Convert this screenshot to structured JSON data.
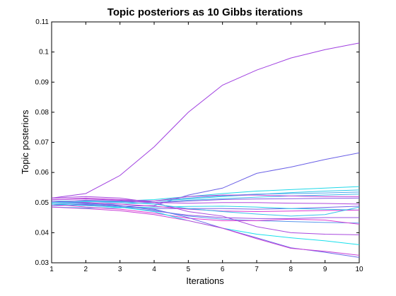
{
  "chart_data": {
    "type": "line",
    "title": "Topic posteriors as 10 Gibbs iterations",
    "xlabel": "Iterations",
    "ylabel": "Topic posteriors",
    "xlim": [
      1,
      10
    ],
    "ylim": [
      0.03,
      0.11
    ],
    "grid": false,
    "x": [
      1,
      2,
      3,
      4,
      5,
      6,
      7,
      8,
      9,
      10
    ],
    "x_ticks": [
      "1",
      "2",
      "3",
      "4",
      "5",
      "6",
      "7",
      "8",
      "9",
      "10"
    ],
    "y_ticks": [
      0.03,
      0.04,
      0.05,
      0.06,
      0.07,
      0.08,
      0.09,
      0.1,
      0.11
    ],
    "y_tick_labels": [
      "0.03",
      "0.04",
      "0.05",
      "0.06",
      "0.07",
      "0.08",
      "0.09",
      "0.1",
      "0.11"
    ],
    "series": [
      {
        "color": "#a040e0",
        "values": [
          0.0515,
          0.053,
          0.059,
          0.0685,
          0.08,
          0.089,
          0.094,
          0.098,
          0.1008,
          0.103
        ]
      },
      {
        "color": "#6a60e6",
        "values": [
          0.049,
          0.0495,
          0.0488,
          0.049,
          0.0525,
          0.0548,
          0.0597,
          0.0618,
          0.0643,
          0.0665
        ]
      },
      {
        "color": "#20d8e8",
        "values": [
          0.05,
          0.0502,
          0.0505,
          0.051,
          0.052,
          0.053,
          0.0538,
          0.0543,
          0.0548,
          0.0553
        ]
      },
      {
        "color": "#30c8e8",
        "values": [
          0.0505,
          0.0505,
          0.0503,
          0.0505,
          0.0512,
          0.052,
          0.0527,
          0.0533,
          0.0538,
          0.0542
        ]
      },
      {
        "color": "#50a8ec",
        "values": [
          0.0495,
          0.0498,
          0.05,
          0.0505,
          0.0515,
          0.0523,
          0.0528,
          0.053,
          0.0532,
          0.0535
        ]
      },
      {
        "color": "#40b8ea",
        "values": [
          0.049,
          0.0492,
          0.0495,
          0.05,
          0.0508,
          0.0513,
          0.0518,
          0.0522,
          0.0525,
          0.0528
        ]
      },
      {
        "color": "#c040d8",
        "values": [
          0.051,
          0.0515,
          0.051,
          0.0505,
          0.052,
          0.0525,
          0.0525,
          0.0522,
          0.052,
          0.052
        ]
      },
      {
        "color": "#8858e4",
        "values": [
          0.05,
          0.0508,
          0.0505,
          0.05,
          0.0505,
          0.051,
          0.0512,
          0.0513,
          0.0514,
          0.0515
        ]
      },
      {
        "color": "#b048dc",
        "values": [
          0.051,
          0.0512,
          0.0508,
          0.05,
          0.0498,
          0.05,
          0.05,
          0.0498,
          0.0497,
          0.0495
        ]
      },
      {
        "color": "#7860e6",
        "values": [
          0.0495,
          0.049,
          0.0485,
          0.048,
          0.048,
          0.048,
          0.0478,
          0.048,
          0.0484,
          0.0488
        ]
      },
      {
        "color": "#28d0e8",
        "values": [
          0.0485,
          0.0482,
          0.0483,
          0.0485,
          0.0487,
          0.0488,
          0.0485,
          0.048,
          0.0478,
          0.0475
        ]
      },
      {
        "color": "#d838d4",
        "values": [
          0.0505,
          0.05,
          0.0495,
          0.0488,
          0.0478,
          0.0472,
          0.047,
          0.0472,
          0.0474,
          0.0475
        ]
      },
      {
        "color": "#9850e2",
        "values": [
          0.049,
          0.0492,
          0.0485,
          0.0472,
          0.0458,
          0.045,
          0.0447,
          0.0447,
          0.045,
          0.045
        ]
      },
      {
        "color": "#5898ec",
        "values": [
          0.05,
          0.0498,
          0.049,
          0.0475,
          0.0455,
          0.0445,
          0.044,
          0.0437,
          0.0434,
          0.0432
        ]
      },
      {
        "color": "#e038d2",
        "values": [
          0.0495,
          0.0485,
          0.0478,
          0.0465,
          0.0448,
          0.044,
          0.044,
          0.0445,
          0.0442,
          0.0428
        ]
      },
      {
        "color": "#a848de",
        "values": [
          0.0515,
          0.052,
          0.0515,
          0.05,
          0.047,
          0.0455,
          0.042,
          0.04,
          0.0395,
          0.0393
        ]
      },
      {
        "color": "#18e0ec",
        "values": [
          0.0495,
          0.049,
          0.0485,
          0.047,
          0.044,
          0.0415,
          0.0395,
          0.0383,
          0.0373,
          0.036
        ]
      },
      {
        "color": "#6a68e8",
        "values": [
          0.0505,
          0.0498,
          0.049,
          0.0478,
          0.045,
          0.0415,
          0.0383,
          0.035,
          0.0335,
          0.0318
        ]
      },
      {
        "color": "#c840d6",
        "values": [
          0.0485,
          0.048,
          0.0473,
          0.046,
          0.044,
          0.0415,
          0.038,
          0.0348,
          0.0338,
          0.0325
        ]
      },
      {
        "color": "#38c0ea",
        "values": [
          0.05,
          0.0503,
          0.0502,
          0.0495,
          0.048,
          0.047,
          0.0462,
          0.0455,
          0.046,
          0.0485
        ]
      }
    ]
  }
}
